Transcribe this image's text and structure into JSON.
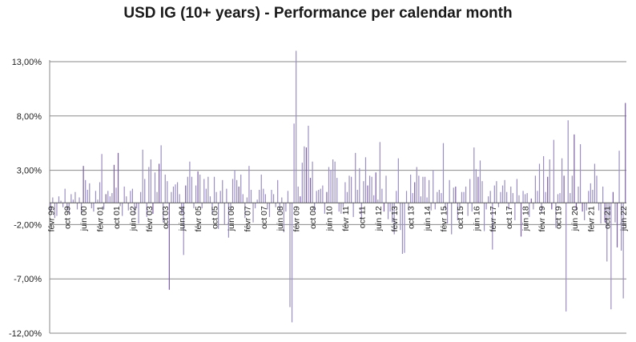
{
  "chart_data": {
    "type": "bar",
    "title": "USD IG (10+ years) - Performance per calendar month",
    "xlabel": "",
    "ylabel": "",
    "ylim": [
      -12,
      15
    ],
    "yticks": [
      13,
      8,
      3,
      -2,
      -7,
      -12
    ],
    "ytick_labels": [
      "13,00%",
      "8,00%",
      "3,00%",
      "-2,00%",
      "-7,00%",
      "-12,00%"
    ],
    "x_start": "1999-02",
    "x_tick_labels": [
      {
        "label": "févr 99",
        "month_index": 0
      },
      {
        "label": "oct 99",
        "month_index": 8
      },
      {
        "label": "juin 00",
        "month_index": 16
      },
      {
        "label": "févr 01",
        "month_index": 24
      },
      {
        "label": "oct 01",
        "month_index": 32
      },
      {
        "label": "juin 02",
        "month_index": 40
      },
      {
        "label": "févr 03",
        "month_index": 48
      },
      {
        "label": "oct 03",
        "month_index": 56
      },
      {
        "label": "juin 04",
        "month_index": 64
      },
      {
        "label": "févr 05",
        "month_index": 72
      },
      {
        "label": "oct 05",
        "month_index": 80
      },
      {
        "label": "juin 06",
        "month_index": 88
      },
      {
        "label": "févr 07",
        "month_index": 96
      },
      {
        "label": "oct 07",
        "month_index": 104
      },
      {
        "label": "juin 08",
        "month_index": 112
      },
      {
        "label": "févr 09",
        "month_index": 120
      },
      {
        "label": "oct 09",
        "month_index": 128
      },
      {
        "label": "juin 10",
        "month_index": 136
      },
      {
        "label": "févr 11",
        "month_index": 144
      },
      {
        "label": "oct 11",
        "month_index": 152
      },
      {
        "label": "juin 12",
        "month_index": 160
      },
      {
        "label": "févr 13",
        "month_index": 168
      },
      {
        "label": "oct 13",
        "month_index": 176
      },
      {
        "label": "juin 14",
        "month_index": 184
      },
      {
        "label": "févr 15",
        "month_index": 192
      },
      {
        "label": "oct 15",
        "month_index": 200
      },
      {
        "label": "juin 16",
        "month_index": 208
      },
      {
        "label": "févr 17",
        "month_index": 216
      },
      {
        "label": "oct 17",
        "month_index": 224
      },
      {
        "label": "juin 18",
        "month_index": 232
      },
      {
        "label": "févr 19",
        "month_index": 240
      },
      {
        "label": "oct 19",
        "month_index": 248
      },
      {
        "label": "juin 20",
        "month_index": 256
      },
      {
        "label": "févr 21",
        "month_index": 264
      },
      {
        "label": "oct 21",
        "month_index": 272
      },
      {
        "label": "juin 22",
        "month_index": 280
      }
    ],
    "series": [
      {
        "color": "#9b8ec4",
        "values": [
          -0.8,
          0.5,
          -1.4,
          -1.2,
          0.6,
          0.2,
          -0.4,
          1.3,
          -0.6,
          -1.0,
          0.8,
          0.3,
          1.0,
          -0.6,
          0.5,
          -1.0,
          3.4,
          2.1,
          1.2,
          1.8,
          -0.5,
          -0.8,
          1.1,
          0.3,
          1.9,
          4.5,
          -0.6,
          0.8,
          1.1,
          0.6,
          0.9,
          3.5,
          1.4,
          4.6,
          -0.3,
          -1.2,
          1.5,
          0.6,
          -0.7,
          1.1,
          1.3,
          -1.0,
          -0.5,
          -1.9,
          1.0,
          4.9,
          2.2,
          -1.3,
          3.3,
          4.0,
          -1.0,
          2.8,
          1.0,
          3.6,
          5.3,
          -1.8,
          2.6,
          2.0,
          -8.0,
          1.0,
          1.5,
          1.7,
          1.9,
          0.8,
          -1.0,
          -4.8,
          1.6,
          2.4,
          3.8,
          2.4,
          -0.5,
          1.6,
          2.9,
          2.6,
          -0.5,
          2.2,
          1.3,
          2.4,
          0.6,
          -1.1,
          2.4,
          1.0,
          -2.4,
          1.1,
          2.1,
          -2.0,
          1.3,
          -3.2,
          -0.6,
          2.2,
          3.0,
          2.1,
          1.5,
          2.6,
          0.8,
          -1.4,
          0.5,
          3.4,
          1.2,
          -1.8,
          -0.5,
          0.3,
          1.2,
          2.6,
          1.3,
          0.8,
          -0.6,
          -1.3,
          1.2,
          0.8,
          -0.4,
          2.1,
          -0.8,
          0.5,
          -2.7,
          -0.8,
          1.1,
          -9.6,
          -11.0,
          7.3,
          14.0,
          1.5,
          0.6,
          3.7,
          5.2,
          5.1,
          7.1,
          2.3,
          3.8,
          -0.8,
          1.1,
          1.2,
          1.3,
          1.6,
          -1.0,
          1.0,
          3.3,
          3.0,
          4.0,
          3.8,
          2.3,
          -0.8,
          -1.0,
          -0.4,
          1.9,
          1.0,
          2.5,
          2.4,
          -1.3,
          4.6,
          1.2,
          3.2,
          -1.5,
          2.0,
          4.2,
          1.6,
          2.5,
          2.4,
          0.7,
          2.8,
          0.3,
          5.6,
          1.3,
          -0.8,
          2.5,
          -1.5,
          -0.8,
          -1.8,
          -2.9,
          1.1,
          4.1,
          -2.5,
          -4.7,
          -4.6,
          1.1,
          -0.7,
          2.6,
          0.9,
          1.9,
          3.3,
          2.5,
          0.6,
          2.4,
          2.4,
          0.5,
          2.1,
          -0.7,
          3.0,
          -0.6,
          1.0,
          1.2,
          0.9,
          5.5,
          -0.6,
          -1.9,
          2.1,
          -2.9,
          1.4,
          1.5,
          -1.6,
          -0.6,
          1.0,
          1.0,
          1.5,
          -1.2,
          2.2,
          -0.8,
          5.1,
          3.1,
          2.4,
          3.9,
          2.0,
          -2.6,
          -0.6,
          0.6,
          1.1,
          -4.3,
          1.6,
          2.0,
          -0.4,
          1.0,
          1.6,
          2.1,
          1.0,
          -0.6,
          1.5,
          0.9,
          -1.6,
          2.2,
          0.7,
          -3.1,
          1.1,
          0.8,
          0.9,
          -1.3,
          0.4,
          -0.6,
          2.5,
          1.1,
          3.6,
          -0.9,
          4.3,
          1.0,
          2.4,
          4.0,
          -0.6,
          5.8,
          -2.3,
          0.8,
          0.9,
          4.1,
          2.5,
          -10.0,
          7.6,
          0.9,
          2.5,
          6.3,
          -0.7,
          1.5,
          5.4,
          -0.8,
          -1.6,
          -0.7,
          1.1,
          1.8,
          1.2,
          3.6,
          2.5,
          -0.7,
          -1.9,
          1.5,
          -1.8,
          -5.4,
          -1.4,
          -9.8,
          1.0,
          -1.8,
          -4.1,
          4.8,
          -4.4,
          -8.8,
          9.2
        ],
        "highlight_indices": [
          16,
          27,
          31,
          33,
          50,
          53,
          58,
          66,
          72,
          92,
          122,
          125,
          127,
          135,
          155,
          159,
          163,
          178,
          198,
          209,
          230,
          235,
          243,
          245,
          251,
          256,
          257,
          260,
          271,
          275,
          277,
          281
        ],
        "highlight_color": "#7b5ea7"
      }
    ]
  }
}
